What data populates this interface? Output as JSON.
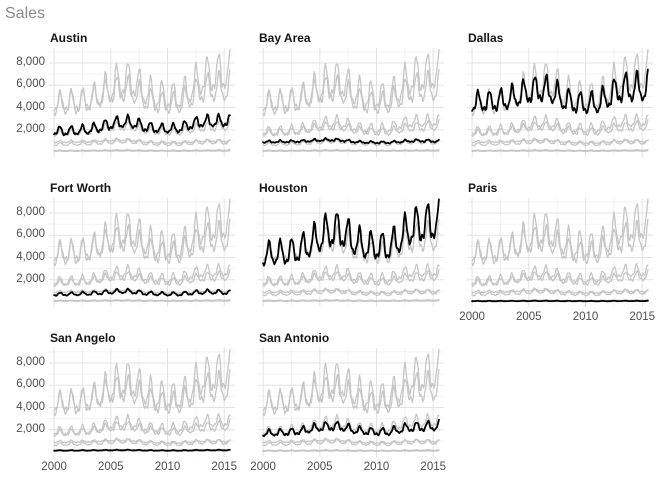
{
  "title": "Sales",
  "chart_data": {
    "type": "line",
    "title": "Sales",
    "description": "Small-multiples of monthly housing sales 2000-2015.5; each facet highlights one city in black over all cities in light gray",
    "facets": [
      "Austin",
      "Bay Area",
      "Dallas",
      "Fort Worth",
      "Houston",
      "Paris",
      "San Angelo",
      "San Antonio"
    ],
    "x_axis": {
      "range": [
        2000,
        2015.5
      ],
      "ticks": [
        2000,
        2005,
        2010,
        2015
      ],
      "tick_labels": [
        "2000",
        "2005",
        "2010",
        "2015"
      ],
      "minor_ticks": [
        2002.5,
        2007.5,
        2012.5
      ],
      "unit": "year, monthly points"
    },
    "y_axis": {
      "label": "Sales",
      "range": [
        0,
        9000
      ],
      "ticks": [
        2000,
        4000,
        6000,
        8000
      ],
      "tick_labels": [
        "2,000",
        "4,000",
        "6,000",
        "8,000"
      ],
      "minor_ticks": [
        1000,
        3000,
        5000,
        7000,
        9000
      ]
    },
    "points_per_series": 187,
    "start_year": 2000,
    "series": [
      {
        "name": "Austin",
        "annual_levels": [
          1850,
          1850,
          1900,
          1980,
          2200,
          2500,
          2650,
          2600,
          2250,
          2100,
          2050,
          2100,
          2450,
          2700,
          2700,
          2750
        ],
        "seasonal_amplitude": 0.2
      },
      {
        "name": "Bay Area",
        "annual_levels": [
          900,
          920,
          930,
          950,
          1000,
          1060,
          1100,
          1050,
          920,
          870,
          850,
          850,
          920,
          1000,
          1020,
          980
        ],
        "seasonal_amplitude": 0.12
      },
      {
        "name": "Dallas",
        "annual_levels": [
          4400,
          4450,
          4500,
          4650,
          5000,
          5400,
          5600,
          5400,
          4700,
          4400,
          4300,
          4300,
          4900,
          5600,
          5700,
          5700
        ],
        "seasonal_amplitude": 0.2
      },
      {
        "name": "Fort Worth",
        "annual_levels": [
          680,
          700,
          720,
          755,
          820,
          900,
          960,
          920,
          780,
          730,
          705,
          695,
          800,
          880,
          900,
          860
        ],
        "seasonal_amplitude": 0.17
      },
      {
        "name": "Houston",
        "annual_levels": [
          4150,
          4300,
          4350,
          4600,
          5100,
          5800,
          6400,
          6300,
          5400,
          5000,
          4950,
          4900,
          5600,
          6600,
          6900,
          7100
        ],
        "seasonal_amplitude": 0.2
      },
      {
        "name": "Paris",
        "annual_levels": [
          78,
          78,
          80,
          82,
          86,
          92,
          95,
          92,
          84,
          80,
          78,
          77,
          82,
          88,
          90,
          92
        ],
        "seasonal_amplitude": 0.18
      },
      {
        "name": "San Angelo",
        "annual_levels": [
          135,
          137,
          140,
          145,
          155,
          168,
          175,
          170,
          150,
          140,
          136,
          134,
          150,
          165,
          168,
          172
        ],
        "seasonal_amplitude": 0.18
      },
      {
        "name": "San Antonio",
        "annual_levels": [
          1650,
          1700,
          1750,
          1830,
          2000,
          2200,
          2300,
          2250,
          1950,
          1850,
          1800,
          1780,
          2000,
          2200,
          2250,
          2300
        ],
        "seasonal_amplitude": 0.18
      }
    ],
    "style": {
      "highlight_color": "#000000",
      "other_series_color": "#c6c6c6",
      "grid_major_color": "#e3e3e3",
      "grid_minor_color": "#f2f2f2",
      "axis_text_color": "#4d4d4d",
      "title_color": "#8a8a8a",
      "strip_text_color": "#151515",
      "background": "#ffffff"
    },
    "legend": "none"
  }
}
